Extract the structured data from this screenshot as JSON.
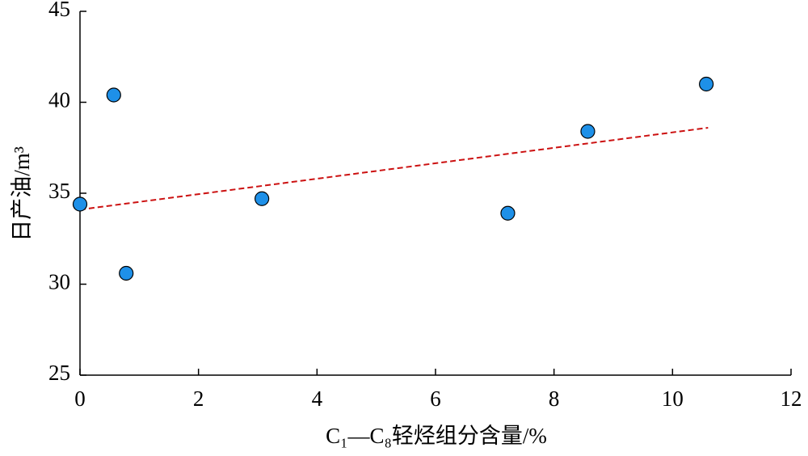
{
  "chart_data": {
    "type": "scatter",
    "x_label": "C₁—C₈轻烃组分含量/%",
    "y_label": "日产油/m³",
    "xlim": [
      0,
      12
    ],
    "xticks": [
      0,
      2,
      4,
      6,
      8,
      10,
      12
    ],
    "ylim": [
      25,
      45
    ],
    "yticks": [
      25,
      30,
      35,
      40,
      45
    ],
    "series": [
      {
        "color": "#1e90e8",
        "x": [
          0,
          0.57,
          0.78,
          3.07,
          7.22,
          8.57,
          10.57
        ],
        "values": [
          34.4,
          40.4,
          30.6,
          34.7,
          33.9,
          38.4,
          41.0
        ]
      }
    ],
    "trendline": {
      "color": "#cc1111",
      "x": [
        0,
        10.6
      ],
      "values": [
        34.1,
        38.6
      ]
    }
  }
}
